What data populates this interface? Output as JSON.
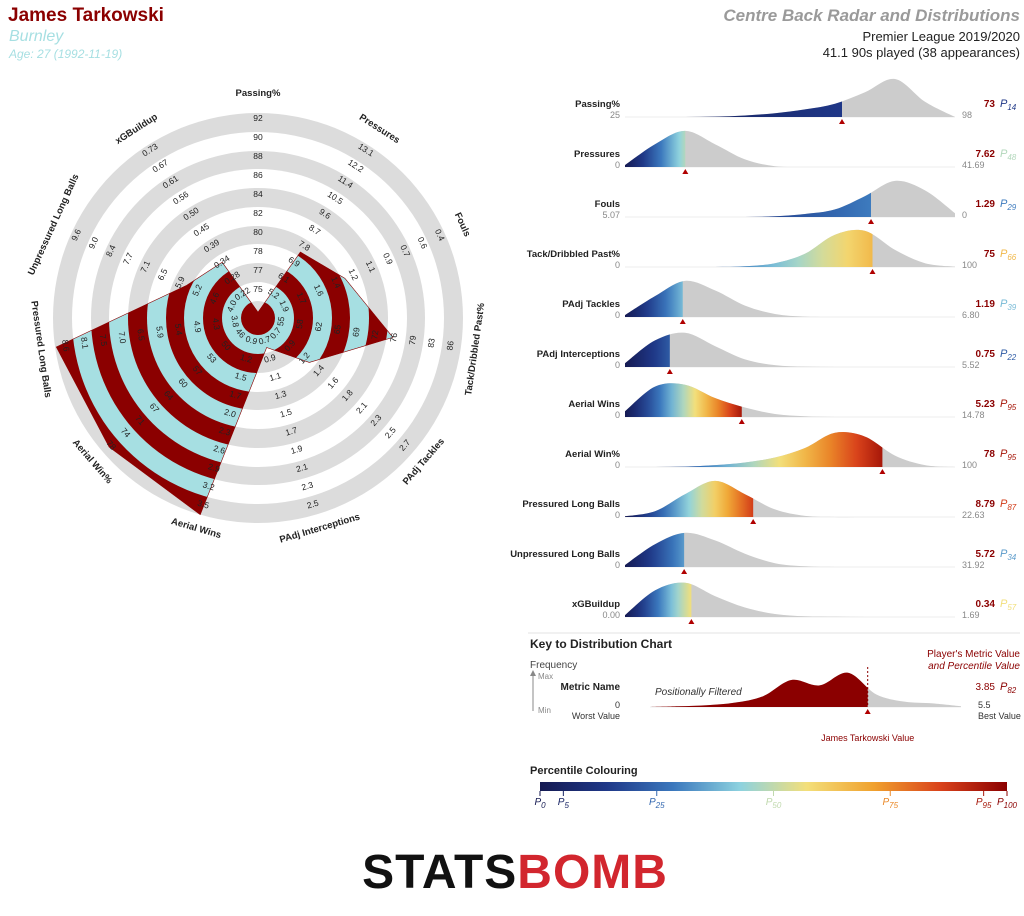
{
  "header": {
    "player": "James Tarkowski",
    "team": "Burnley",
    "age": "Age: 27 (1992-11-19)",
    "title": "Centre Back Radar and Distributions",
    "competition": "Premier League 2019/2020",
    "minutes": "41.1 90s played (38 appearances)"
  },
  "chart_data": [
    {
      "type": "radar",
      "categories": [
        "Passing%",
        "Pressures",
        "Fouls",
        "Tack/Dribbled Past%",
        "PAdj Tackles",
        "PAdj Interceptions",
        "Aerial Wins",
        "Aerial Win%",
        "Pressured Long Balls",
        "Unpressured Long Balls",
        "xGBuildup"
      ],
      "values": [
        73,
        7.62,
        1.29,
        75,
        1.19,
        0.75,
        5.23,
        78,
        8.79,
        5.72,
        0.34
      ],
      "axis_ticks": [
        [
          75,
          77,
          78,
          80,
          82,
          84,
          86,
          88,
          90,
          92
        ],
        [
          5.2,
          6.1,
          6.9,
          7.8,
          8.7,
          9.6,
          10.5,
          11.4,
          12.2,
          13.1
        ],
        [
          1.9,
          1.7,
          1.6,
          1.4,
          1.2,
          1.1,
          0.9,
          0.7,
          0.6,
          0.4
        ],
        [
          55,
          58,
          62,
          65,
          69,
          72,
          76,
          79,
          83,
          86
        ],
        [
          0.7,
          0.9,
          1.2,
          1.4,
          1.6,
          1.8,
          2.1,
          2.3,
          2.5,
          2.7
        ],
        [
          0.7,
          0.9,
          1.1,
          1.3,
          1.5,
          1.7,
          1.9,
          2.1,
          2.3,
          2.5
        ],
        [
          0.9,
          1.2,
          1.5,
          1.7,
          {
            "value": 2,
            "label": "2.0"
          },
          2.3,
          2.6,
          2.9,
          3.2,
          3.5
        ],
        [
          46,
          50,
          53,
          57,
          60,
          64,
          67,
          71,
          74,
          78
        ],
        [
          3.8,
          4.3,
          4.9,
          5.4,
          5.9,
          6.5,
          {
            "value": 7,
            "label": "7.0"
          },
          7.5,
          8.1,
          8.6
        ],
        [
          {
            "value": 4,
            "label": "4.0"
          },
          4.6,
          5.2,
          5.9,
          6.5,
          7.1,
          7.7,
          8.4,
          {
            "value": 9,
            "label": "9.0"
          },
          9.6
        ],
        [
          0.22,
          0.28,
          0.34,
          0.39,
          0.45,
          {
            "value": 0.5,
            "label": "0.50"
          },
          0.56,
          0.61,
          0.67,
          0.73
        ]
      ],
      "colors": {
        "inside": "#8b0000",
        "alternate": "#a6dfe2",
        "rings": "#dcdcdc"
      }
    },
    {
      "type": "distribution",
      "percentile_symbol": "P",
      "colormap": [
        "#151a52",
        "#1f3888",
        "#3b78bd",
        "#8dd2df",
        "#f3df7a",
        "#f0a12e",
        "#d9421b",
        "#8b0000"
      ],
      "base_color": "#cccccc",
      "series": [
        {
          "xlim": [
            25,
            98
          ],
          "xticks": [
            25,
            98
          ],
          "density": [
            0,
            0,
            0,
            0.01,
            0.04,
            0.1,
            0.2,
            0.35,
            0.65,
            1.0,
            0.4,
            0
          ],
          "percentile": 14
        },
        {
          "xlim": [
            0,
            41.69
          ],
          "xticks": [
            0,
            41.69
          ],
          "density": [
            0.05,
            0.6,
            0.95,
            0.6,
            0.2,
            0.02,
            0,
            0,
            0,
            0,
            0,
            0
          ],
          "percentile": 48
        },
        {
          "xlim": [
            5.07,
            0
          ],
          "xticks": [
            5.07,
            0
          ],
          "density": [
            0,
            0,
            0,
            0,
            0,
            0.02,
            0.08,
            0.2,
            0.55,
            0.95,
            0.7,
            0.1
          ],
          "percentile": 29
        },
        {
          "xlim": [
            0,
            100
          ],
          "xticks": [
            0,
            100
          ],
          "density": [
            0,
            0,
            0,
            0,
            0.02,
            0.1,
            0.35,
            0.85,
            0.95,
            0.45,
            0.1,
            0.01
          ],
          "percentile": 66
        },
        {
          "xlim": [
            0,
            6.8
          ],
          "xticks": [
            0,
            {
              "value": 6.8,
              "label": "6.80"
            }
          ],
          "density": [
            0.05,
            0.55,
            0.95,
            0.7,
            0.3,
            0.08,
            0.01,
            0,
            0,
            0,
            0,
            0
          ],
          "percentile": 39
        },
        {
          "xlim": [
            0,
            5.52
          ],
          "xticks": [
            0,
            5.52
          ],
          "density": [
            0.1,
            0.7,
            0.9,
            0.55,
            0.2,
            0.05,
            0.01,
            0,
            0,
            0,
            0,
            0
          ],
          "percentile": 22
        },
        {
          "xlim": [
            0,
            14.78
          ],
          "xticks": [
            0,
            14.78
          ],
          "density": [
            0.15,
            0.8,
            0.85,
            0.5,
            0.25,
            0.08,
            0.02,
            0,
            0,
            0,
            0,
            0
          ],
          "percentile": 95
        },
        {
          "xlim": [
            0,
            100
          ],
          "xticks": [
            0,
            100
          ],
          "density": [
            0,
            0,
            0.01,
            0.05,
            0.12,
            0.25,
            0.5,
            0.9,
            0.8,
            0.3,
            0.05,
            0
          ],
          "percentile": 95
        },
        {
          "xlim": [
            0,
            22.63
          ],
          "xticks": [
            0,
            22.63
          ],
          "density": [
            0.02,
            0.15,
            0.6,
            0.95,
            0.6,
            0.2,
            0.03,
            0,
            0,
            0,
            0,
            0
          ],
          "percentile": 87
        },
        {
          "xlim": [
            0,
            31.92
          ],
          "xticks": [
            0,
            31.92
          ],
          "density": [
            0.05,
            0.6,
            0.9,
            0.7,
            0.35,
            0.1,
            0.02,
            0,
            0,
            0,
            0,
            0
          ],
          "percentile": 34
        },
        {
          "xlim": [
            0,
            1.69
          ],
          "xticks": [
            {
              "value": 0,
              "label": "0.00"
            },
            1.69
          ],
          "density": [
            0.05,
            0.7,
            0.9,
            0.55,
            0.25,
            0.08,
            0.02,
            0.01,
            0,
            0,
            0,
            0
          ],
          "percentile": 57
        }
      ]
    }
  ],
  "key": {
    "title": "Key to Distribution Chart",
    "frequency": "Frequency",
    "max": "Max",
    "min": "Min",
    "metric_name": "Metric Name",
    "filter_note": "Positionally Filtered",
    "xlim": [
      0,
      5.5
    ],
    "xticks": [
      0,
      5.5
    ],
    "worst": "Worst Value",
    "best": "Best Value",
    "value_note": [
      "Player's Metric Value",
      "and Percentile Value"
    ],
    "value": 3.85,
    "percentile": 82,
    "marker_label": "James Tarkowski Value",
    "density": [
      0,
      0.02,
      0.05,
      0.12,
      0.3,
      0.75,
      0.6,
      0.95,
      0.35,
      0.15,
      0.1,
      0.02
    ],
    "color": "#8b0000"
  },
  "percentile_legend": {
    "title": "Percentile Colouring",
    "xlim": [
      0,
      100
    ],
    "ticks": [
      0,
      5,
      25,
      50,
      75,
      95,
      100
    ]
  },
  "logo": [
    "STATS",
    "BOMB"
  ]
}
